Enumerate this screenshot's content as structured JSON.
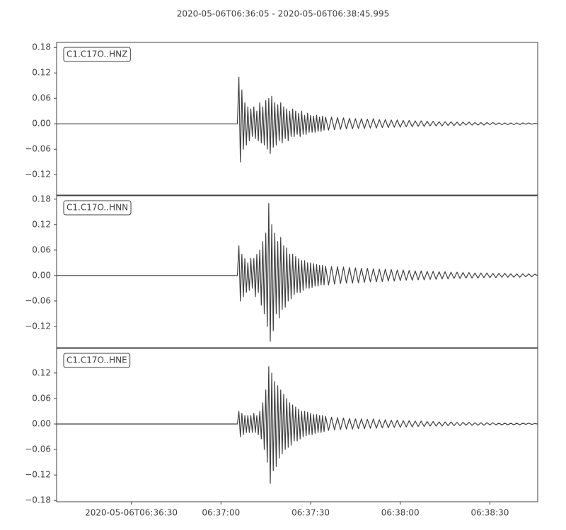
{
  "chart_data": {
    "type": "line",
    "title": "2020-05-06T06:36:05  -  2020-05-06T06:38:45.995",
    "color": "#404040",
    "xlim": [
      0,
      160.995
    ],
    "xticks": [
      {
        "value": 25,
        "label": "2020-05-06T06:36:30"
      },
      {
        "value": 55,
        "label": "06:37:00"
      },
      {
        "value": 85,
        "label": "06:37:30"
      },
      {
        "value": 115,
        "label": "06:38:00"
      },
      {
        "value": 145,
        "label": "06:38:30"
      }
    ],
    "x": [
      0,
      60.5,
      61,
      61.5,
      62,
      62.5,
      63,
      63.5,
      64,
      64.5,
      65,
      65.5,
      66,
      66.5,
      67,
      67.5,
      68,
      68.5,
      69,
      69.5,
      70,
      70.5,
      71,
      71.5,
      72,
      72.5,
      73,
      73.5,
      74,
      74.5,
      75,
      75.5,
      76,
      76.5,
      77,
      77.5,
      78,
      78.5,
      79,
      79.5,
      80,
      80.5,
      81,
      81.5,
      82,
      82.5,
      83,
      83.5,
      84,
      84.5,
      85,
      85.5,
      86,
      86.5,
      87,
      87.5,
      88,
      88.5,
      89,
      89.5,
      90,
      91,
      92,
      93,
      94,
      95,
      96,
      97,
      98,
      99,
      100,
      101,
      102,
      103,
      104,
      105,
      106,
      107,
      108,
      109,
      110,
      111,
      112,
      113,
      114,
      115,
      116,
      117,
      118,
      119,
      120,
      121,
      122,
      123,
      124,
      125,
      126,
      127,
      128,
      129,
      130,
      131,
      132,
      133,
      134,
      135,
      136,
      137,
      138,
      139,
      140,
      141,
      142,
      143,
      144,
      145,
      146,
      147,
      148,
      149,
      150,
      151,
      152,
      153,
      154,
      155,
      156,
      157,
      158,
      159,
      160,
      160.995
    ],
    "series": [
      {
        "name": "C1.C17O..HNZ",
        "ylim": [
          -0.168,
          0.192
        ],
        "yticks": [
          {
            "value": -0.12,
            "label": "−0.12"
          },
          {
            "value": -0.06,
            "label": "−0.06"
          },
          {
            "value": 0,
            "label": "0.00"
          },
          0.06,
          0.12,
          0.18
        ],
        "values": [
          0,
          0,
          0.11,
          -0.09,
          0.08,
          -0.06,
          0.05,
          -0.05,
          0.04,
          -0.04,
          0.035,
          -0.03,
          0.04,
          -0.035,
          0.03,
          -0.04,
          0.05,
          -0.045,
          0.04,
          -0.05,
          0.055,
          -0.06,
          0.06,
          -0.07,
          0.065,
          -0.055,
          0.05,
          -0.05,
          0.045,
          -0.04,
          0.05,
          -0.045,
          0.04,
          -0.035,
          0.035,
          -0.04,
          0.03,
          -0.03,
          0.035,
          -0.03,
          0.03,
          -0.025,
          0.025,
          -0.03,
          0.03,
          -0.025,
          0.02,
          -0.025,
          0.025,
          -0.02,
          0.02,
          -0.02,
          0.018,
          -0.02,
          0.02,
          -0.018,
          0.016,
          -0.018,
          0.018,
          -0.015,
          0.016,
          -0.015,
          0.016,
          -0.014,
          0.015,
          -0.013,
          0.014,
          -0.012,
          0.013,
          -0.012,
          0.012,
          -0.011,
          0.012,
          -0.011,
          0.011,
          -0.01,
          0.012,
          -0.01,
          0.01,
          -0.009,
          0.01,
          -0.009,
          0.009,
          -0.008,
          0.009,
          -0.008,
          0.008,
          -0.007,
          0.008,
          -0.007,
          0.007,
          -0.006,
          0.007,
          -0.006,
          0.006,
          -0.005,
          0.006,
          -0.005,
          0.005,
          -0.005,
          0.005,
          -0.004,
          0.005,
          -0.004,
          0.004,
          -0.004,
          0.004,
          -0.003,
          0.004,
          -0.003,
          0.003,
          -0.003,
          0.003,
          -0.003,
          0.003,
          -0.002,
          0.003,
          -0.002,
          0.002,
          -0.002,
          0.002,
          -0.002,
          0.002,
          -0.002,
          0.002,
          -0.002,
          0.002,
          -0.001,
          0.002,
          -0.001,
          0.001,
          0
        ]
      },
      {
        "name": "C1.C17O..HNN",
        "ylim": [
          -0.17,
          0.188
        ],
        "yticks": [
          {
            "value": -0.12,
            "label": "−0.12"
          },
          {
            "value": -0.06,
            "label": "−0.06"
          },
          {
            "value": 0,
            "label": "0.00"
          },
          0.06,
          0.12,
          0.18
        ],
        "values": [
          0,
          0,
          0.07,
          -0.06,
          0.05,
          -0.05,
          0.04,
          -0.04,
          0.03,
          -0.035,
          0.04,
          -0.03,
          0.04,
          -0.05,
          0.05,
          -0.04,
          0.06,
          -0.07,
          0.08,
          -0.09,
          0.1,
          -0.12,
          0.17,
          -0.155,
          0.12,
          -0.13,
          0.1,
          -0.09,
          0.08,
          -0.1,
          0.09,
          -0.08,
          0.07,
          -0.075,
          0.065,
          -0.06,
          0.05,
          -0.055,
          0.05,
          -0.045,
          0.045,
          -0.04,
          0.04,
          -0.04,
          0.035,
          -0.035,
          0.035,
          -0.03,
          0.03,
          -0.03,
          0.03,
          -0.028,
          0.028,
          -0.025,
          0.026,
          -0.025,
          0.024,
          -0.022,
          0.024,
          -0.022,
          0.022,
          -0.022,
          0.021,
          -0.02,
          0.021,
          -0.019,
          0.02,
          -0.018,
          0.019,
          -0.018,
          0.018,
          -0.017,
          0.017,
          -0.016,
          0.017,
          -0.015,
          0.016,
          -0.015,
          0.015,
          -0.014,
          0.015,
          -0.013,
          0.014,
          -0.013,
          0.013,
          -0.012,
          0.013,
          -0.011,
          0.012,
          -0.011,
          0.011,
          -0.01,
          0.011,
          -0.01,
          0.01,
          -0.009,
          0.01,
          -0.009,
          0.009,
          -0.008,
          0.009,
          -0.008,
          0.008,
          -0.007,
          0.008,
          -0.007,
          0.007,
          -0.006,
          0.007,
          -0.006,
          0.006,
          -0.006,
          0.006,
          -0.005,
          0.006,
          -0.005,
          0.005,
          -0.005,
          0.005,
          -0.004,
          0.005,
          -0.004,
          0.004,
          -0.004,
          0.004,
          -0.004,
          0.004,
          -0.003,
          0.004,
          -0.003,
          0.003,
          0
        ]
      },
      {
        "name": "C1.C17O..HNE",
        "ylim": [
          -0.183,
          0.178
        ],
        "yticks": [
          {
            "value": -0.18,
            "label": "−0.18"
          },
          {
            "value": -0.12,
            "label": "−0.12"
          },
          {
            "value": -0.06,
            "label": "−0.06"
          },
          {
            "value": 0,
            "label": "0.00"
          },
          0.06,
          0.12
        ],
        "values": [
          0,
          0,
          0.03,
          -0.03,
          0.025,
          -0.025,
          0.02,
          -0.02,
          0.02,
          -0.02,
          0.02,
          -0.02,
          0.025,
          -0.02,
          0.02,
          -0.025,
          0.03,
          -0.035,
          0.05,
          -0.06,
          0.08,
          -0.09,
          0.135,
          -0.14,
          0.12,
          -0.11,
          0.1,
          -0.1,
          0.09,
          -0.08,
          0.08,
          -0.07,
          0.07,
          -0.06,
          0.06,
          -0.055,
          0.05,
          -0.05,
          0.045,
          -0.04,
          0.04,
          -0.04,
          0.035,
          -0.035,
          0.03,
          -0.03,
          0.03,
          -0.028,
          0.028,
          -0.025,
          0.025,
          -0.025,
          0.022,
          -0.022,
          0.022,
          -0.02,
          0.02,
          -0.02,
          0.02,
          -0.018,
          0.018,
          -0.015,
          0.016,
          -0.014,
          0.015,
          -0.013,
          0.014,
          -0.012,
          0.013,
          -0.012,
          0.012,
          -0.011,
          0.012,
          -0.011,
          0.011,
          -0.01,
          0.012,
          -0.01,
          0.01,
          -0.009,
          0.01,
          -0.009,
          0.009,
          -0.008,
          0.009,
          -0.008,
          0.008,
          -0.007,
          0.008,
          -0.007,
          0.007,
          -0.006,
          0.007,
          -0.006,
          0.006,
          -0.005,
          0.006,
          -0.005,
          0.005,
          -0.005,
          0.005,
          -0.004,
          0.005,
          -0.004,
          0.004,
          -0.004,
          0.004,
          -0.003,
          0.004,
          -0.003,
          0.003,
          -0.003,
          0.003,
          -0.003,
          0.003,
          -0.002,
          0.003,
          -0.002,
          0.002,
          -0.002,
          0.002,
          -0.002,
          0.002,
          -0.002,
          0.002,
          -0.002,
          0.002,
          -0.001,
          0.002,
          -0.001,
          0.001,
          0
        ]
      }
    ]
  }
}
